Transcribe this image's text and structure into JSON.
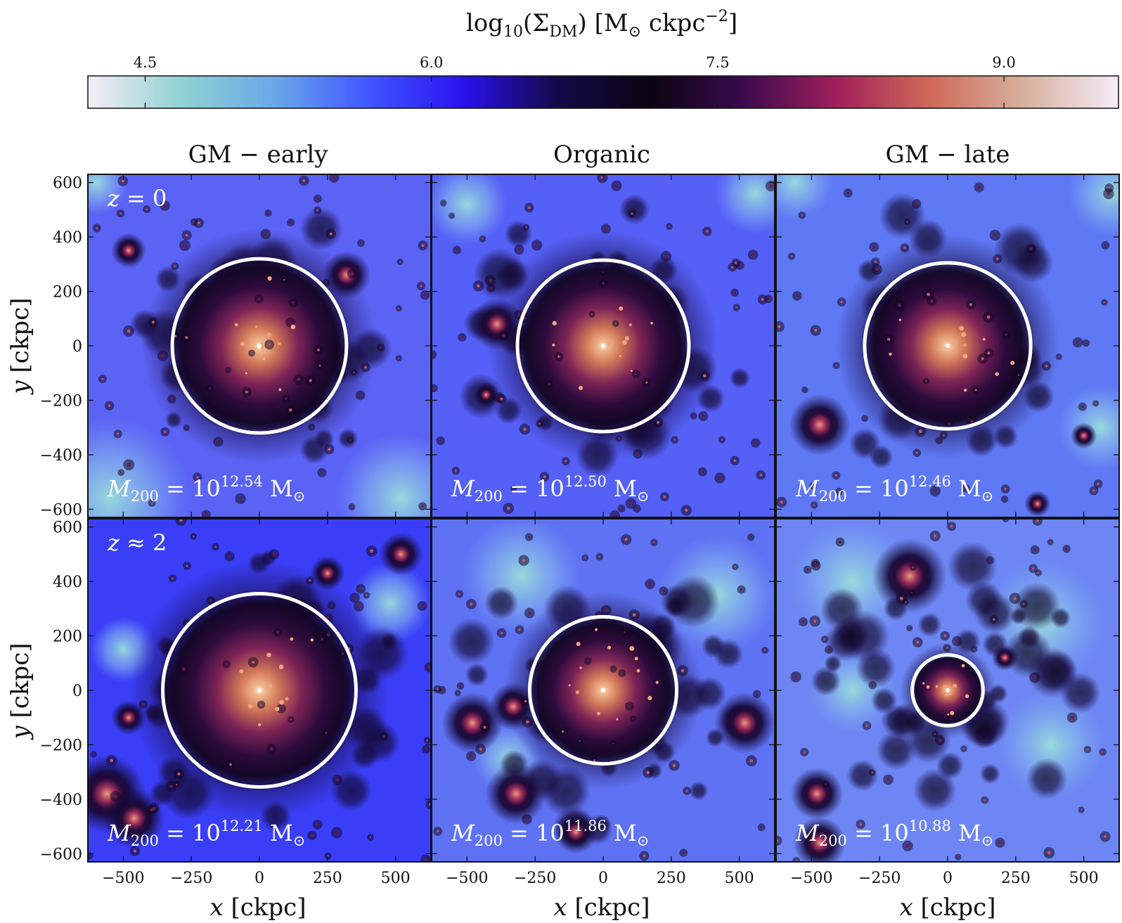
{
  "chart_data": {
    "type": "heatmap",
    "colorbar": {
      "label": "log10(ΣDM) [M⊙ ckpc−2]",
      "label_parts": {
        "log": "log",
        "log_sub": "10",
        "sigma": "(Σ",
        "sigma_sub": "DM",
        "units": ") [M",
        "sun": "⊙",
        "ckpc": " ckpc",
        "exp": "−2",
        "close": "]"
      },
      "range": [
        4.2,
        9.6
      ],
      "ticks": [
        4.5,
        6.0,
        7.5,
        9.0
      ],
      "tick_labels": [
        "4.5",
        "6.0",
        "7.5",
        "9.0"
      ],
      "stops": [
        "#f7eef6",
        "#8fd3d3",
        "#6aa7ea",
        "#3f56ff",
        "#2b11f0",
        "#130a4a",
        "#0b0512",
        "#3b0a4f",
        "#a1205a",
        "#d06a58",
        "#d7b19f",
        "#f6ecf8"
      ],
      "placement": "top"
    },
    "columns": [
      "GM − early",
      "Organic",
      "GM − late"
    ],
    "rows": [
      {
        "redshift_label": "z = 0",
        "z_var": "z",
        "z_rel": " = 0"
      },
      {
        "redshift_label": "z ≈ 2",
        "z_var": "z",
        "z_rel": " ≈ 2"
      }
    ],
    "xlabel": "x [ckpc]",
    "xlabel_parts": {
      "var": "x",
      "unit": " [ckpc]"
    },
    "ylabel": "y [ckpc]",
    "ylabel_parts": {
      "var": "y",
      "unit": " [ckpc]"
    },
    "xlim": [
      -630,
      630
    ],
    "ylim": [
      -630,
      630
    ],
    "xticks": [
      -500,
      -250,
      0,
      250,
      500
    ],
    "xtick_labels": [
      "−500",
      "−250",
      "0",
      "250",
      "500"
    ],
    "yticks": [
      -600,
      -400,
      -200,
      0,
      200,
      400,
      600
    ],
    "ytick_labels": [
      "−600",
      "−400",
      "−200",
      "0",
      "200",
      "400",
      "600"
    ],
    "mass_prefix": "M",
    "mass_sub": "200",
    "mass_eq": " = 10",
    "mass_unit": " M",
    "mass_sun": "⊙",
    "panels": [
      {
        "id": "gm-early-z0",
        "row": 0,
        "col": 0,
        "log_m200": "12.54",
        "r200_ckpc": 320
      },
      {
        "id": "organic-z0",
        "row": 0,
        "col": 1,
        "log_m200": "12.50",
        "r200_ckpc": 315
      },
      {
        "id": "gm-late-z0",
        "row": 0,
        "col": 2,
        "log_m200": "12.46",
        "r200_ckpc": 305
      },
      {
        "id": "gm-early-z2",
        "row": 1,
        "col": 0,
        "log_m200": "12.21",
        "r200_ckpc": 355
      },
      {
        "id": "organic-z2",
        "row": 1,
        "col": 1,
        "log_m200": "11.86",
        "r200_ckpc": 270
      },
      {
        "id": "gm-late-z2",
        "row": 1,
        "col": 2,
        "log_m200": "10.88",
        "r200_ckpc": 130
      }
    ]
  }
}
